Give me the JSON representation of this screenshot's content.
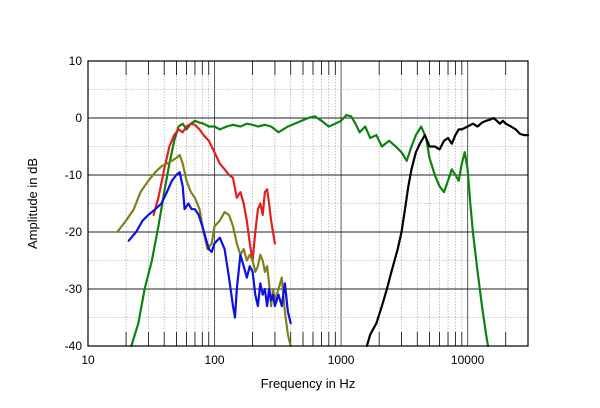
{
  "chart_data": {
    "type": "line",
    "title": "",
    "xlabel": "Frequency in Hz",
    "ylabel": "Amplitude in dB",
    "xscale": "log",
    "xlim": [
      10,
      30000
    ],
    "ylim": [
      -40,
      10
    ],
    "x_tick_labels": [
      {
        "value": 10,
        "label": "10"
      },
      {
        "value": 100,
        "label": "100"
      },
      {
        "value": 1000,
        "label": "1000"
      },
      {
        "value": 10000,
        "label": "10000"
      }
    ],
    "y_tick_labels": [
      {
        "value": 10,
        "label": "10"
      },
      {
        "value": 0,
        "label": "0"
      },
      {
        "value": -10,
        "label": "-10"
      },
      {
        "value": -20,
        "label": "-20"
      },
      {
        "value": -30,
        "label": "-30"
      },
      {
        "value": -40,
        "label": "-40"
      }
    ],
    "grid": true,
    "series": [
      {
        "name": "green",
        "color": "#108010",
        "points": [
          [
            22,
            -40
          ],
          [
            25,
            -36
          ],
          [
            28,
            -30
          ],
          [
            32,
            -25
          ],
          [
            36,
            -19
          ],
          [
            40,
            -13
          ],
          [
            44,
            -8
          ],
          [
            48,
            -4
          ],
          [
            52,
            -1.5
          ],
          [
            56,
            -1
          ],
          [
            60,
            -2
          ],
          [
            65,
            -1
          ],
          [
            70,
            -0.5
          ],
          [
            76,
            -0.8
          ],
          [
            82,
            -1
          ],
          [
            90,
            -1.5
          ],
          [
            100,
            -1.5
          ],
          [
            110,
            -2
          ],
          [
            125,
            -1.5
          ],
          [
            140,
            -1.2
          ],
          [
            160,
            -1.5
          ],
          [
            180,
            -1
          ],
          [
            200,
            -1.2
          ],
          [
            220,
            -1.5
          ],
          [
            250,
            -1.2
          ],
          [
            280,
            -1.5
          ],
          [
            320,
            -2.5
          ],
          [
            380,
            -1.5
          ],
          [
            450,
            -0.8
          ],
          [
            550,
            0
          ],
          [
            620,
            0.3
          ],
          [
            700,
            -0.5
          ],
          [
            800,
            -1.5
          ],
          [
            900,
            -1
          ],
          [
            1000,
            -0.5
          ],
          [
            1100,
            0.5
          ],
          [
            1200,
            0.3
          ],
          [
            1300,
            -1
          ],
          [
            1400,
            -2.5
          ],
          [
            1550,
            -1.5
          ],
          [
            1700,
            -3.5
          ],
          [
            1900,
            -3
          ],
          [
            2100,
            -5
          ],
          [
            2400,
            -4
          ],
          [
            2700,
            -5
          ],
          [
            3000,
            -6
          ],
          [
            3300,
            -7.5
          ],
          [
            3600,
            -5
          ],
          [
            3900,
            -3
          ],
          [
            4300,
            -1.5
          ],
          [
            4700,
            -3.5
          ],
          [
            5000,
            -7
          ],
          [
            5500,
            -10
          ],
          [
            6000,
            -12
          ],
          [
            6500,
            -13
          ],
          [
            7000,
            -11
          ],
          [
            7500,
            -9
          ],
          [
            8000,
            -10
          ],
          [
            8500,
            -11
          ],
          [
            9000,
            -8
          ],
          [
            9500,
            -6
          ],
          [
            10000,
            -9
          ],
          [
            10500,
            -15
          ],
          [
            11000,
            -20
          ],
          [
            12000,
            -27
          ],
          [
            13000,
            -33
          ],
          [
            14000,
            -38
          ],
          [
            14500,
            -40
          ]
        ]
      },
      {
        "name": "red",
        "color": "#e02020",
        "points": [
          [
            33,
            -17
          ],
          [
            36,
            -14
          ],
          [
            40,
            -9
          ],
          [
            44,
            -5
          ],
          [
            48,
            -3
          ],
          [
            52,
            -2
          ],
          [
            56,
            -2.5
          ],
          [
            60,
            -1.5
          ],
          [
            65,
            -1
          ],
          [
            70,
            -1.2
          ],
          [
            76,
            -2
          ],
          [
            82,
            -3
          ],
          [
            90,
            -4
          ],
          [
            100,
            -6
          ],
          [
            110,
            -8
          ],
          [
            120,
            -9
          ],
          [
            130,
            -10
          ],
          [
            140,
            -10.5
          ],
          [
            150,
            -14
          ],
          [
            160,
            -13
          ],
          [
            170,
            -15
          ],
          [
            180,
            -18
          ],
          [
            190,
            -22
          ],
          [
            200,
            -25
          ],
          [
            210,
            -20
          ],
          [
            220,
            -16
          ],
          [
            230,
            -15
          ],
          [
            240,
            -17
          ],
          [
            250,
            -13
          ],
          [
            260,
            -12.5
          ],
          [
            270,
            -15
          ],
          [
            280,
            -18
          ],
          [
            300,
            -22
          ]
        ]
      },
      {
        "name": "olive",
        "color": "#808020",
        "points": [
          [
            17,
            -20
          ],
          [
            20,
            -18
          ],
          [
            23,
            -16
          ],
          [
            26,
            -13
          ],
          [
            30,
            -11
          ],
          [
            34,
            -9.5
          ],
          [
            38,
            -8.5
          ],
          [
            42,
            -8
          ],
          [
            46,
            -7.5
          ],
          [
            50,
            -7
          ],
          [
            53,
            -6.5
          ],
          [
            56,
            -8
          ],
          [
            60,
            -11
          ],
          [
            65,
            -13
          ],
          [
            70,
            -14
          ],
          [
            76,
            -16
          ],
          [
            82,
            -20
          ],
          [
            88,
            -23
          ],
          [
            95,
            -22
          ],
          [
            100,
            -19
          ],
          [
            110,
            -18
          ],
          [
            120,
            -16.5
          ],
          [
            130,
            -17
          ],
          [
            140,
            -19
          ],
          [
            150,
            -22
          ],
          [
            160,
            -24
          ],
          [
            170,
            -23
          ],
          [
            180,
            -25
          ],
          [
            190,
            -24
          ],
          [
            200,
            -25
          ],
          [
            210,
            -27
          ],
          [
            220,
            -26
          ],
          [
            230,
            -24
          ],
          [
            240,
            -25
          ],
          [
            250,
            -27
          ],
          [
            260,
            -26
          ],
          [
            270,
            -29
          ],
          [
            280,
            -33
          ],
          [
            290,
            -30
          ],
          [
            300,
            -32
          ],
          [
            320,
            -30
          ],
          [
            340,
            -28
          ],
          [
            360,
            -34
          ],
          [
            380,
            -38
          ],
          [
            400,
            -40
          ]
        ]
      },
      {
        "name": "blue",
        "color": "#1010e0",
        "points": [
          [
            21,
            -21.5
          ],
          [
            24,
            -20
          ],
          [
            27,
            -18
          ],
          [
            30,
            -17
          ],
          [
            34,
            -16
          ],
          [
            38,
            -15
          ],
          [
            42,
            -13
          ],
          [
            46,
            -11
          ],
          [
            50,
            -10
          ],
          [
            53,
            -9.5
          ],
          [
            56,
            -12
          ],
          [
            58,
            -16
          ],
          [
            62,
            -15
          ],
          [
            66,
            -16
          ],
          [
            70,
            -16
          ],
          [
            75,
            -17
          ],
          [
            80,
            -19
          ],
          [
            85,
            -21
          ],
          [
            90,
            -23
          ],
          [
            95,
            -23.5
          ],
          [
            100,
            -22
          ],
          [
            110,
            -21
          ],
          [
            120,
            -23
          ],
          [
            130,
            -28
          ],
          [
            140,
            -33
          ],
          [
            145,
            -35
          ],
          [
            150,
            -30
          ],
          [
            160,
            -24
          ],
          [
            170,
            -26
          ],
          [
            180,
            -28
          ],
          [
            190,
            -26
          ],
          [
            200,
            -27
          ],
          [
            210,
            -31
          ],
          [
            220,
            -33
          ],
          [
            230,
            -29
          ],
          [
            240,
            -31
          ],
          [
            250,
            -30
          ],
          [
            260,
            -33
          ],
          [
            270,
            -30
          ],
          [
            280,
            -32
          ],
          [
            290,
            -31
          ],
          [
            300,
            -33
          ],
          [
            320,
            -31
          ],
          [
            340,
            -33
          ],
          [
            360,
            -29
          ],
          [
            380,
            -34
          ],
          [
            400,
            -36
          ]
        ]
      },
      {
        "name": "black",
        "color": "#000000",
        "points": [
          [
            1600,
            -40
          ],
          [
            1700,
            -38
          ],
          [
            1900,
            -36
          ],
          [
            2100,
            -33
          ],
          [
            2300,
            -30
          ],
          [
            2500,
            -27
          ],
          [
            2800,
            -23
          ],
          [
            3000,
            -20
          ],
          [
            3200,
            -16
          ],
          [
            3400,
            -12
          ],
          [
            3600,
            -9
          ],
          [
            3900,
            -6
          ],
          [
            4200,
            -4.5
          ],
          [
            4600,
            -3
          ],
          [
            5000,
            -5
          ],
          [
            5500,
            -5
          ],
          [
            6000,
            -5.5
          ],
          [
            6500,
            -4
          ],
          [
            7000,
            -3.5
          ],
          [
            7500,
            -4.5
          ],
          [
            8000,
            -3
          ],
          [
            8500,
            -2
          ],
          [
            9000,
            -2
          ],
          [
            10000,
            -1.5
          ],
          [
            11000,
            -1
          ],
          [
            12000,
            -1.5
          ],
          [
            13000,
            -0.8
          ],
          [
            14000,
            -0.5
          ],
          [
            15000,
            -0.3
          ],
          [
            16000,
            0
          ],
          [
            17000,
            -0.5
          ],
          [
            18000,
            -1
          ],
          [
            19000,
            -0.5
          ],
          [
            20000,
            -1
          ],
          [
            22000,
            -1.5
          ],
          [
            24000,
            -2
          ],
          [
            26000,
            -2.8
          ],
          [
            28000,
            -3
          ],
          [
            30000,
            -3
          ]
        ]
      }
    ]
  }
}
